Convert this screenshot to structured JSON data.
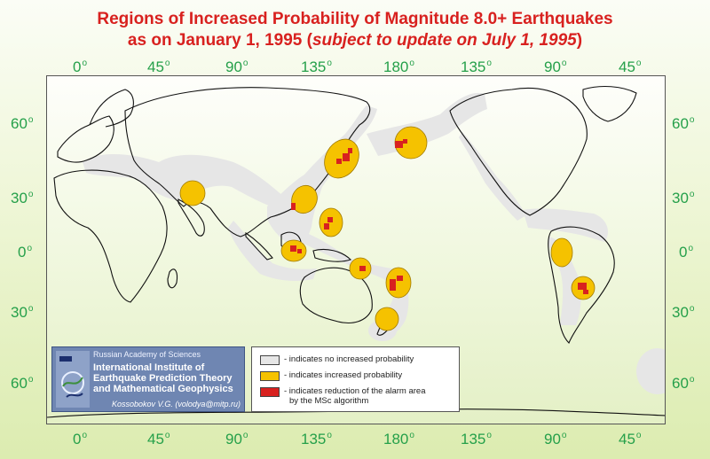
{
  "title": {
    "line1": "Regions of Increased Probability of Magnitude 8.0+ Earthquakes",
    "line2_prefix": "as on January 1, 1995 (",
    "line2_italic": "subject to update on July 1, 1995",
    "line2_suffix": ")"
  },
  "degree_symbol": "o",
  "longitude_ticks": [
    "0",
    "45",
    "90",
    "135",
    "180",
    "135",
    "90",
    "45"
  ],
  "latitude_ticks": [
    "60",
    "30",
    "0",
    "30",
    "60"
  ],
  "institute": {
    "academy": "Russian Academy of Sciences",
    "name_line1": "International Institute of",
    "name_line2": "Earthquake Prediction Theory",
    "name_line3": "and Mathematical Geophysics",
    "author": "Kossobokov V.G. (volodya@mitp.ru)"
  },
  "legend": [
    {
      "color": "#e6e6e6",
      "label": "- indicates no increased probability"
    },
    {
      "color": "#f5c200",
      "label": "- indicates increased probability"
    },
    {
      "color": "#d8211f",
      "label": "- indicates reduction of the alarm area",
      "label2": "by the MSc algorithm"
    }
  ],
  "colors": {
    "title": "#d8211f",
    "axis_labels": "#25a04a",
    "no_increase": "#e6e6e6",
    "increased": "#f5c200",
    "reduced": "#d8211f",
    "coast": "#111111"
  }
}
